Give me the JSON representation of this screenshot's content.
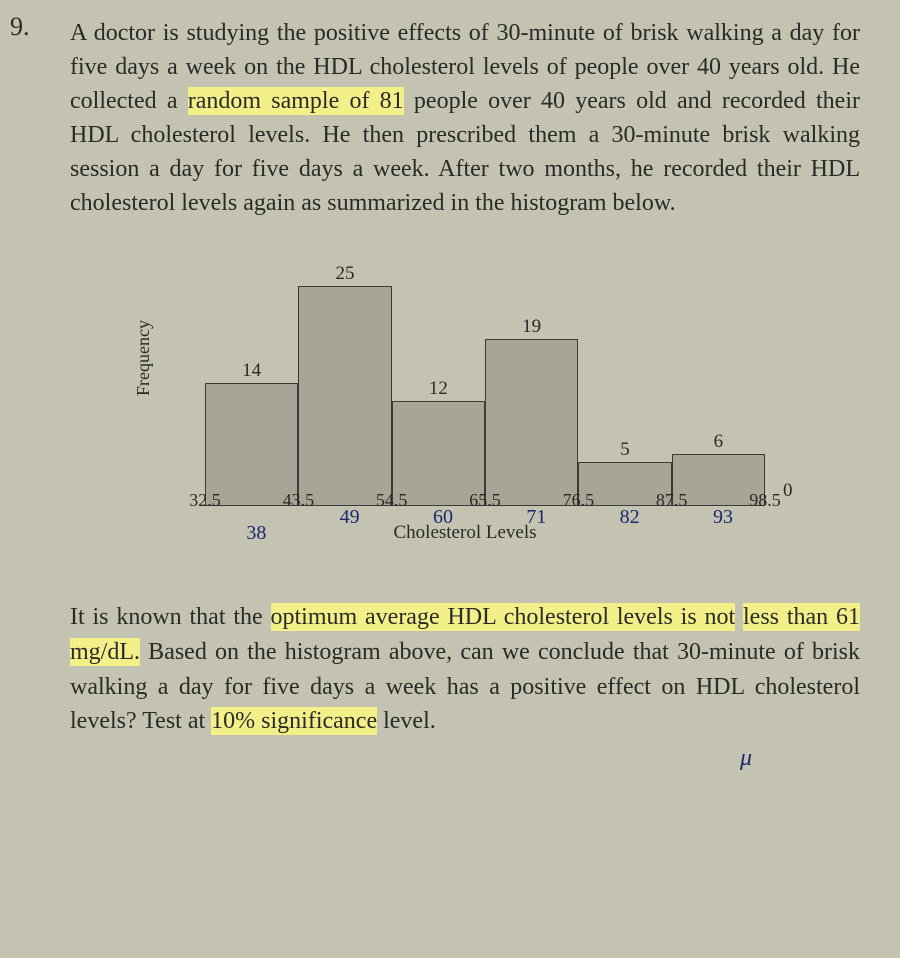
{
  "question_number": "9.",
  "problem_text_parts": {
    "p1": "A doctor is studying the positive effects of 30-minute of brisk walking a day for five days a week on the HDL cholesterol levels of people over 40 years old. He collected a ",
    "hl1": "random sample of 81",
    "p2": " people over 40 years old and recorded their HDL cholesterol levels. He then prescribed them a 30-minute brisk walking session a day for five days a week. After two months, he recorded their HDL cholesterol levels again as summarized in the histogram below."
  },
  "histogram": {
    "type": "histogram",
    "ylabel": "Frequency",
    "xlabel": "Cholesterol Levels",
    "bin_edges": [
      32.5,
      43.5,
      54.5,
      65.5,
      76.5,
      87.5,
      98.5
    ],
    "frequencies": [
      14,
      25,
      12,
      19,
      5,
      6
    ],
    "ymax": 25,
    "trailing_zero_label": "0",
    "bar_fill": "#a8a596",
    "bar_border": "#3a3a38",
    "background": "#c4c2b0",
    "bar_width_ratio": 1.0,
    "value_fontsize": 19,
    "tick_fontsize": 18,
    "label_fontsize": 19
  },
  "handwritten": {
    "midpoints": [
      "38",
      "49",
      "60",
      "71",
      "82",
      "93"
    ],
    "tick_after_first_edge": "|",
    "mu": "μ"
  },
  "conclusion_parts": {
    "c1": "It is known that the ",
    "hl2": "optimum average HDL cholesterol levels is not",
    "c2": " ",
    "hl3": "less than 61 mg/dL.",
    "c3": " Based on the histogram above, can we conclude that 30-minute of brisk walking a day for five days a week has a positive effect on HDL cholesterol levels? Test at ",
    "hl4": "10% significance",
    "c4": " level."
  }
}
